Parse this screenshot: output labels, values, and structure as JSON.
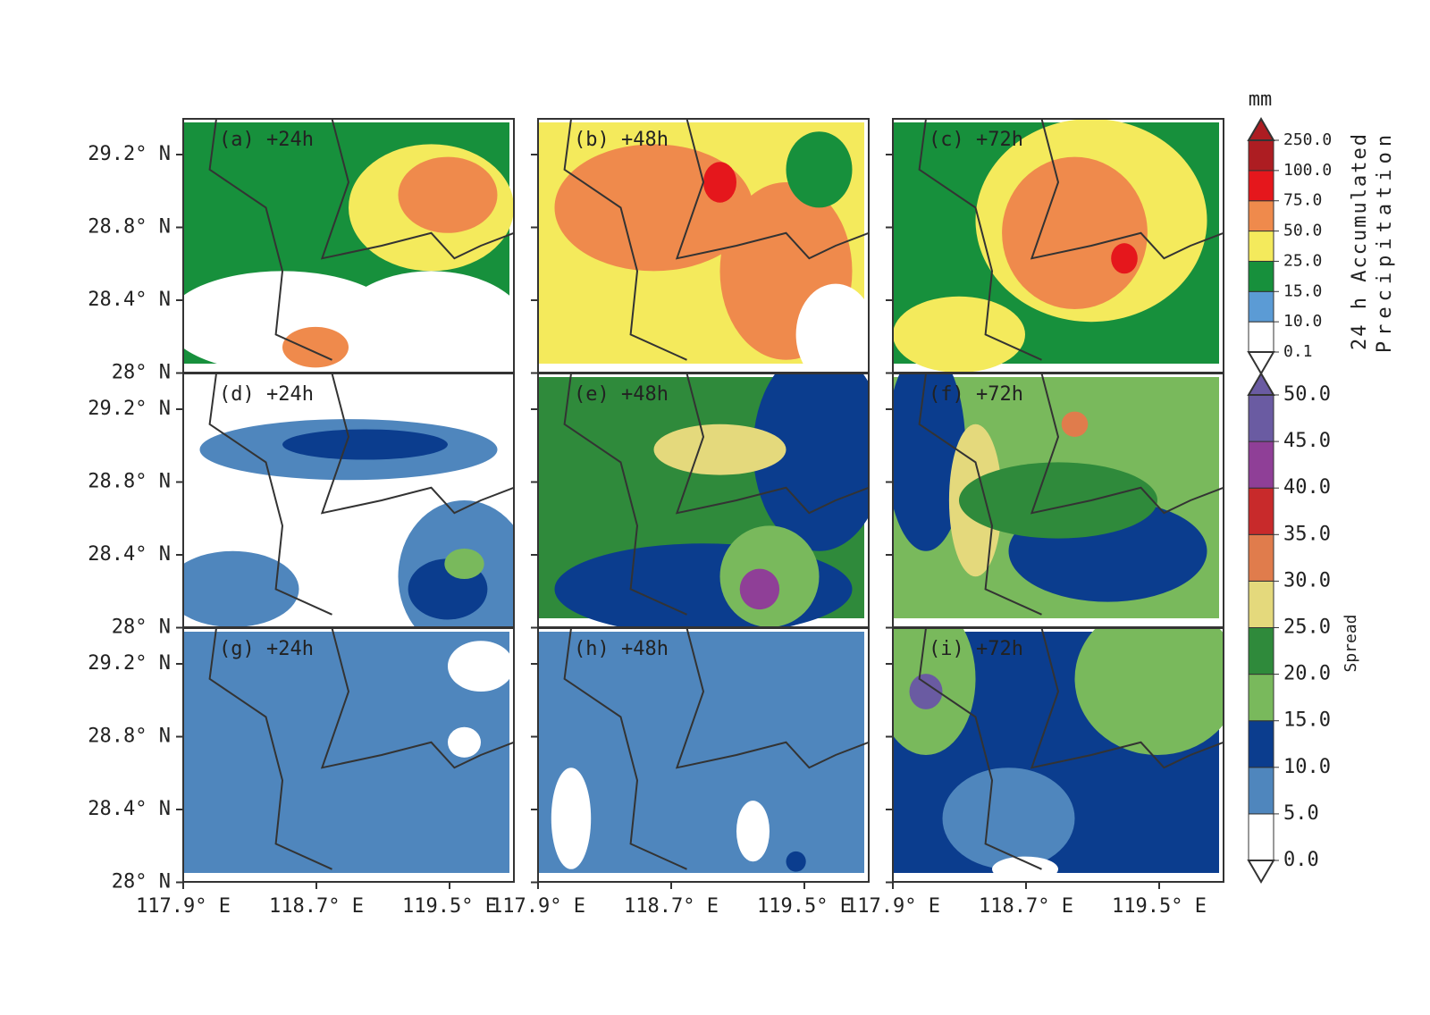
{
  "panels": [
    {
      "label": "(a) +24h"
    },
    {
      "label": "(b) +48h"
    },
    {
      "label": "(c) +72h"
    },
    {
      "label": "(d) +24h"
    },
    {
      "label": "(e) +48h"
    },
    {
      "label": "(f) +72h"
    },
    {
      "label": "(g) +24h"
    },
    {
      "label": "(h) +48h"
    },
    {
      "label": "(i) +72h"
    }
  ],
  "y_tick_labels": [
    "29.2° N",
    "28.8° N",
    "28.4° N",
    "28° N"
  ],
  "x_tick_labels": [
    "117.9° E",
    "118.7° E",
    "119.5° E"
  ],
  "precip_colorbar": {
    "unit": "mm",
    "title_lines": [
      "24 h Accumulated",
      "Precipitation"
    ],
    "level_labels": [
      "0.1",
      "10.0",
      "15.0",
      "25.0",
      "50.0",
      "75.0",
      "100.0",
      "250.0"
    ],
    "colors": [
      "#ffffff",
      "#5b9bd5",
      "#17903c",
      "#f4ea5c",
      "#ef8a4c",
      "#e5171c",
      "#ad1d22"
    ]
  },
  "spread_colorbar": {
    "title": "Spread",
    "level_labels": [
      "0.0",
      "5.0",
      "10.0",
      "15.0",
      "20.0",
      "25.0",
      "30.0",
      "35.0",
      "40.0",
      "45.0",
      "50.0"
    ],
    "colors": [
      "#ffffff",
      "#4f86bd",
      "#0b3d8e",
      "#79b95c",
      "#2f8a3b",
      "#e4d97c",
      "#e07c4c",
      "#c82a2b",
      "#8f3f97",
      "#6a5ba2"
    ]
  }
}
